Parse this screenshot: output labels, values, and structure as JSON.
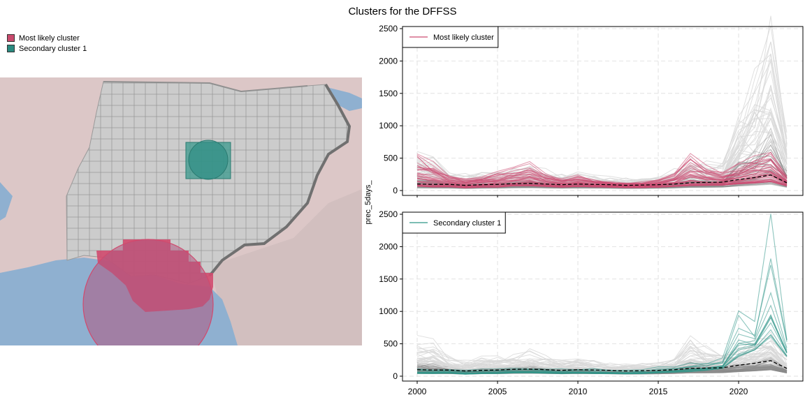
{
  "title": "Clusters for the DFFSS",
  "colors": {
    "most_likely": "#cc4c72",
    "secondary": "#2f9688",
    "background_lines": "#8a8a8a",
    "median": "#000000"
  },
  "map": {
    "legend": [
      {
        "label": "Most likely cluster",
        "color": "#c94a6d"
      },
      {
        "label": "Secondary cluster 1",
        "color": "#2a8a80"
      }
    ]
  },
  "chart_data": [
    {
      "type": "line",
      "ylabel": "prec_5days_",
      "legend": "Most likely cluster",
      "highlight_color": "#cc4c72",
      "xlim": [
        2000,
        2023
      ],
      "ylim": [
        0,
        2500
      ],
      "x_ticks": [
        "2000",
        "2005",
        "2010",
        "2015",
        "2020"
      ],
      "y_ticks": [
        "0",
        "500",
        "1000",
        "1500",
        "2000",
        "2500"
      ],
      "grid": true,
      "x": [
        2000,
        2001,
        2002,
        2003,
        2004,
        2005,
        2006,
        2007,
        2008,
        2009,
        2010,
        2011,
        2012,
        2013,
        2014,
        2015,
        2016,
        2017,
        2018,
        2019,
        2020,
        2021,
        2022,
        2023
      ],
      "median": [
        100,
        95,
        95,
        80,
        90,
        95,
        105,
        110,
        100,
        90,
        100,
        95,
        90,
        80,
        85,
        90,
        100,
        120,
        125,
        130,
        170,
        200,
        240,
        120
      ],
      "highlight_peak": [
        600,
        480,
        270,
        200,
        260,
        300,
        350,
        470,
        270,
        200,
        270,
        180,
        160,
        130,
        140,
        180,
        300,
        560,
        400,
        330,
        420,
        570,
        680,
        250
      ],
      "highlight_low": [
        60,
        50,
        55,
        40,
        50,
        50,
        70,
        70,
        60,
        50,
        60,
        55,
        50,
        45,
        45,
        50,
        60,
        70,
        75,
        80,
        100,
        110,
        130,
        70
      ],
      "highlight_count": 40,
      "background_peak": [
        560,
        500,
        280,
        240,
        290,
        320,
        340,
        380,
        300,
        260,
        280,
        220,
        200,
        180,
        190,
        210,
        300,
        480,
        420,
        380,
        1300,
        1800,
        2430,
        900
      ],
      "background_count": 70
    },
    {
      "type": "line",
      "ylabel": "prec_5days_",
      "legend": "Secondary cluster 1",
      "highlight_color": "#2f9688",
      "xlim": [
        2000,
        2023
      ],
      "ylim": [
        0,
        2500
      ],
      "x_ticks": [
        "2000",
        "2005",
        "2010",
        "2015",
        "2020"
      ],
      "y_ticks": [
        "0",
        "500",
        "1000",
        "1500",
        "2000",
        "2500"
      ],
      "grid": true,
      "x": [
        2000,
        2001,
        2002,
        2003,
        2004,
        2005,
        2006,
        2007,
        2008,
        2009,
        2010,
        2011,
        2012,
        2013,
        2014,
        2015,
        2016,
        2017,
        2018,
        2019,
        2020,
        2021,
        2022,
        2023
      ],
      "median": [
        100,
        95,
        95,
        80,
        90,
        95,
        105,
        110,
        100,
        90,
        100,
        95,
        90,
        80,
        85,
        90,
        100,
        120,
        125,
        130,
        170,
        200,
        240,
        120
      ],
      "highlight_peak": [
        140,
        120,
        120,
        90,
        110,
        120,
        130,
        140,
        130,
        110,
        130,
        120,
        110,
        100,
        110,
        150,
        170,
        200,
        250,
        300,
        1300,
        900,
        2430,
        700
      ],
      "highlight_low": [
        40,
        40,
        45,
        30,
        40,
        40,
        50,
        50,
        45,
        40,
        45,
        40,
        40,
        35,
        40,
        50,
        60,
        70,
        90,
        120,
        300,
        400,
        600,
        300
      ],
      "highlight_count": 14,
      "background_peak": [
        560,
        500,
        280,
        240,
        290,
        320,
        340,
        380,
        300,
        260,
        280,
        220,
        200,
        180,
        190,
        210,
        300,
        560,
        420,
        380,
        420,
        560,
        680,
        280
      ],
      "background_count": 80
    }
  ]
}
